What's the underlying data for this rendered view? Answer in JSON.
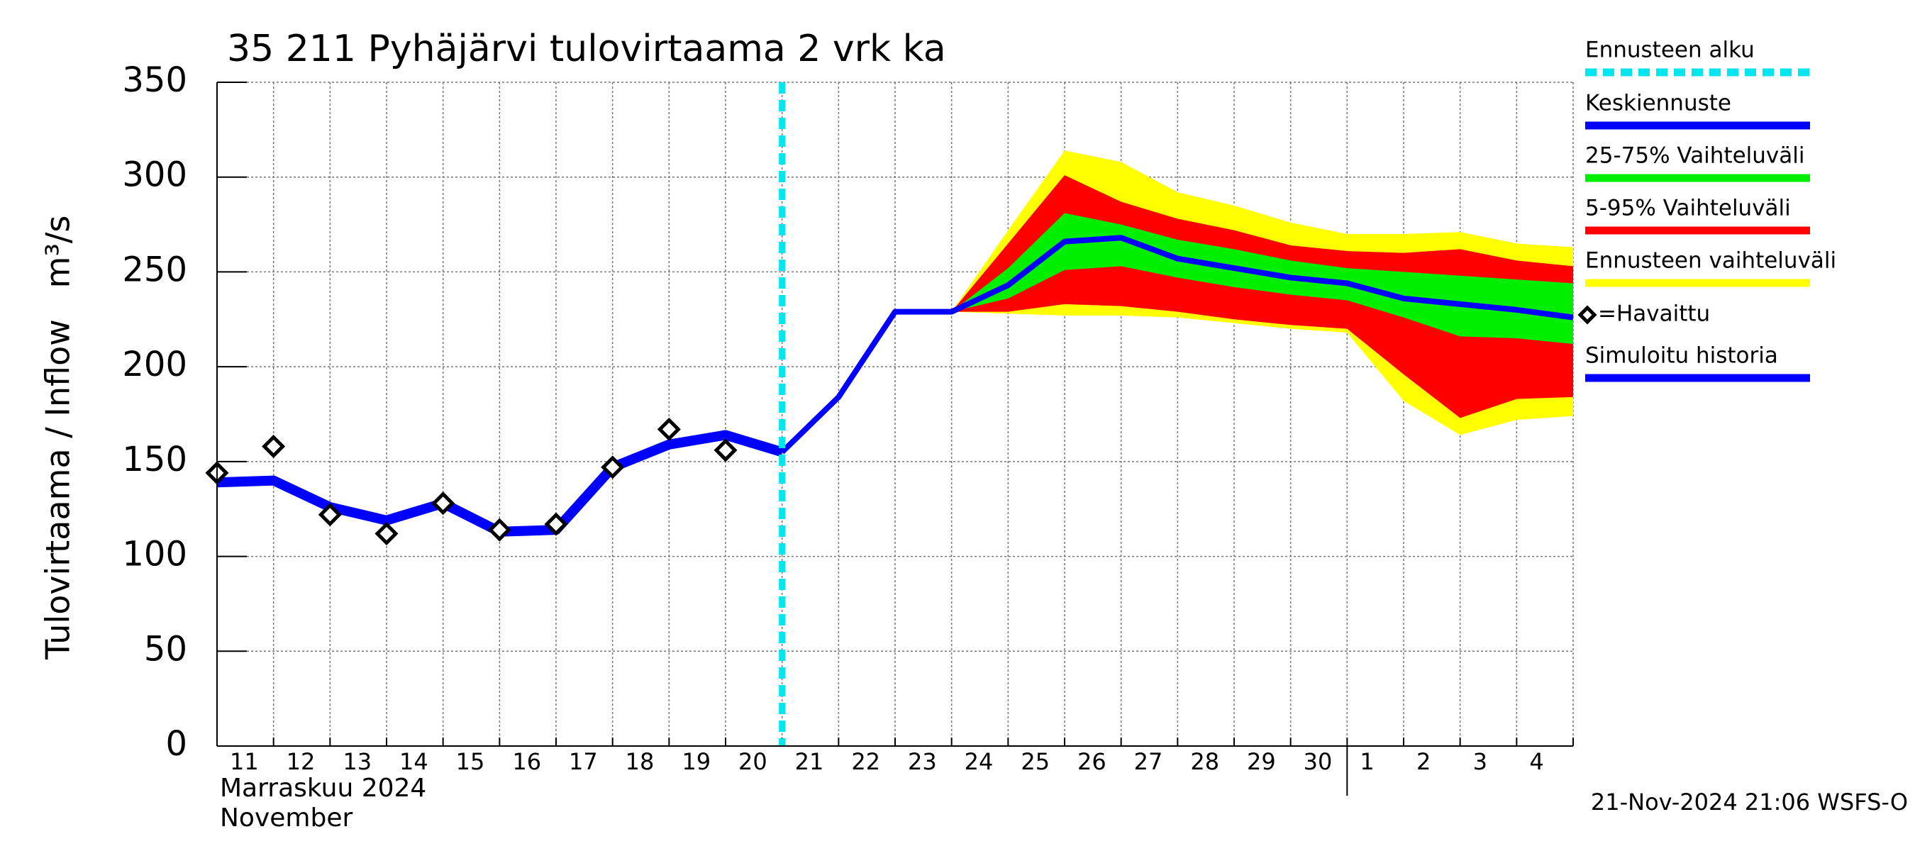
{
  "chart_data": {
    "type": "line",
    "title": "35 211 Pyhäjärvi tulovirtaama 2 vrk ka",
    "y_label": "Tulovirtaama / Inflow",
    "y_unit": "m³/s",
    "month_label": "Marraskuu 2024",
    "month_label_en": "November",
    "timestamp": "21-Nov-2024 21:06 WSFS-O",
    "categories": [
      "11",
      "12",
      "13",
      "14",
      "15",
      "16",
      "17",
      "18",
      "19",
      "20",
      "21",
      "22",
      "23",
      "24",
      "25",
      "26",
      "27",
      "28",
      "29",
      "30",
      "1",
      "2",
      "3",
      "4",
      null
    ],
    "ylim": [
      0,
      350
    ],
    "yticks": [
      0,
      50,
      100,
      150,
      200,
      250,
      300,
      350
    ],
    "grid": true,
    "forecast_start": {
      "name": "Ennusteen alku",
      "color": "#00e5ee",
      "at": "21"
    },
    "bands": [
      {
        "name": "Ennusteen vaihteluväli",
        "color": "#ffff00",
        "upper": [
          null,
          null,
          null,
          null,
          null,
          null,
          null,
          null,
          null,
          null,
          null,
          null,
          null,
          229,
          272,
          314,
          308,
          292,
          285,
          276,
          270,
          270,
          271,
          265,
          263
        ],
        "lower": [
          null,
          null,
          null,
          null,
          null,
          null,
          null,
          null,
          null,
          null,
          null,
          null,
          null,
          229,
          228,
          227,
          227,
          226,
          223,
          220,
          218,
          182,
          164,
          172,
          174
        ]
      },
      {
        "name": "5-95% Vaihteluväli",
        "color": "#ff0000",
        "upper": [
          null,
          null,
          null,
          null,
          null,
          null,
          null,
          null,
          null,
          null,
          null,
          null,
          null,
          229,
          265,
          301,
          287,
          278,
          272,
          264,
          261,
          260,
          262,
          256,
          253
        ],
        "lower": [
          null,
          null,
          null,
          null,
          null,
          null,
          null,
          null,
          null,
          null,
          null,
          null,
          null,
          229,
          229,
          233,
          232,
          229,
          225,
          222,
          220,
          196,
          173,
          183,
          184
        ]
      },
      {
        "name": "25-75% Vaihteluväli",
        "color": "#00ee00",
        "upper": [
          null,
          null,
          null,
          null,
          null,
          null,
          null,
          null,
          null,
          null,
          null,
          null,
          null,
          229,
          252,
          281,
          275,
          267,
          262,
          256,
          252,
          250,
          248,
          246,
          244
        ],
        "lower": [
          null,
          null,
          null,
          null,
          null,
          null,
          null,
          null,
          null,
          null,
          null,
          null,
          null,
          229,
          236,
          251,
          253,
          247,
          242,
          238,
          235,
          226,
          216,
          215,
          212
        ]
      }
    ],
    "series": [
      {
        "name": "Keskiennuste",
        "color": "#0000ff",
        "values": [
          null,
          null,
          null,
          null,
          null,
          null,
          null,
          null,
          null,
          null,
          155,
          184,
          229,
          229,
          243,
          266,
          268,
          257,
          252,
          247,
          244,
          236,
          233,
          230,
          226
        ]
      },
      {
        "name": "Simuloitu historia",
        "color": "#0000ff",
        "values": [
          139,
          140,
          126,
          119,
          128,
          113,
          114,
          147,
          159,
          164,
          155,
          null,
          null,
          null,
          null,
          null,
          null,
          null,
          null,
          null,
          null,
          null,
          null,
          null,
          null
        ]
      }
    ],
    "observed": {
      "name": "=Havaittu",
      "color": "#000000",
      "values": [
        144,
        158,
        122,
        112,
        128,
        114,
        117,
        147,
        167,
        156,
        null,
        null,
        null,
        null,
        null,
        null,
        null,
        null,
        null,
        null,
        null,
        null,
        null,
        null,
        null
      ]
    }
  }
}
